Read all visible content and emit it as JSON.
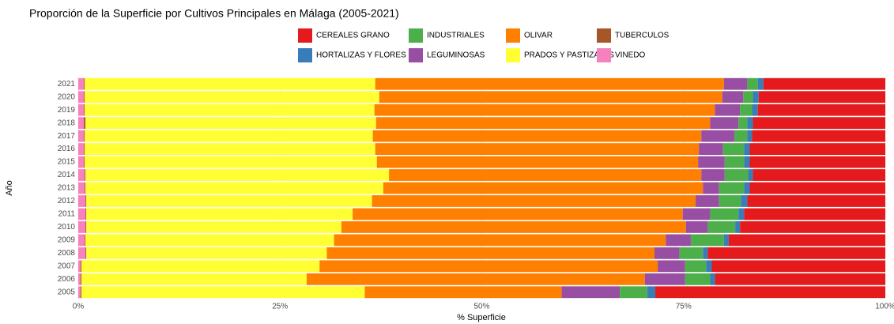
{
  "chart_data": {
    "type": "stacked_barh",
    "title": "Proporción de la Superficie por Cultivos Principales en Málaga (2005-2021)",
    "xlabel": "% Superficie",
    "ylabel": "Año",
    "categories": [
      "2005",
      "2006",
      "2007",
      "2008",
      "2009",
      "2010",
      "2011",
      "2012",
      "2013",
      "2014",
      "2015",
      "2016",
      "2017",
      "2018",
      "2019",
      "2020",
      "2021"
    ],
    "series": [
      {
        "name": "CEREALES GRANO",
        "color": "#e41a1c",
        "values": [
          28.5,
          21.1,
          21.5,
          22.0,
          19.4,
          18.0,
          17.5,
          17.1,
          16.8,
          16.4,
          16.8,
          16.8,
          16.5,
          16.4,
          15.8,
          15.7,
          15.1
        ]
      },
      {
        "name": "HORTALIZAS Y FLORES",
        "color": "#377eb8",
        "values": [
          1.0,
          0.6,
          0.7,
          0.6,
          0.6,
          0.6,
          0.7,
          0.8,
          0.7,
          0.6,
          0.7,
          0.7,
          0.6,
          0.7,
          0.7,
          0.7,
          0.7
        ]
      },
      {
        "name": "INDUSTRIALES",
        "color": "#4daf4a",
        "values": [
          3.4,
          3.1,
          2.6,
          2.9,
          4.1,
          3.4,
          3.5,
          2.7,
          3.1,
          2.9,
          2.4,
          2.6,
          1.6,
          1.1,
          1.5,
          1.2,
          1.3
        ]
      },
      {
        "name": "LEGUMINOSAS",
        "color": "#984ea3",
        "values": [
          7.2,
          5.0,
          3.4,
          3.1,
          3.1,
          2.7,
          3.4,
          2.9,
          2.0,
          2.9,
          3.3,
          3.0,
          4.1,
          3.5,
          3.1,
          2.6,
          2.9
        ]
      },
      {
        "name": "OLIVAR",
        "color": "#ff7f00",
        "values": [
          24.4,
          41.9,
          41.9,
          40.6,
          41.1,
          42.7,
          40.9,
          40.1,
          39.6,
          38.7,
          39.8,
          40.1,
          40.7,
          41.4,
          42.2,
          42.5,
          43.2
        ]
      },
      {
        "name": "PRADOS Y PASTIZALES",
        "color": "#ffff33",
        "values": [
          35.1,
          27.9,
          29.5,
          29.8,
          30.8,
          31.6,
          33.0,
          35.4,
          36.9,
          37.6,
          36.2,
          36.0,
          35.7,
          36.0,
          35.9,
          36.5,
          36.0
        ]
      },
      {
        "name": "TUBERCULOS",
        "color": "#a65628",
        "values": [
          0.1,
          0.1,
          0.1,
          0.1,
          0.1,
          0.1,
          0.1,
          0.1,
          0.1,
          0.1,
          0.1,
          0.1,
          0.1,
          0.2,
          0.1,
          0.1,
          0.1
        ]
      },
      {
        "name": "VINEDO",
        "color": "#f781bf",
        "values": [
          0.3,
          0.3,
          0.3,
          0.9,
          0.8,
          0.9,
          0.9,
          0.9,
          0.8,
          0.8,
          0.7,
          0.7,
          0.7,
          0.7,
          0.7,
          0.7,
          0.7
        ]
      }
    ],
    "xlim": [
      0,
      100
    ],
    "xticks": [
      {
        "value": 0,
        "label": "0%"
      },
      {
        "value": 25,
        "label": "25%"
      },
      {
        "value": 50,
        "label": "50%"
      },
      {
        "value": 75,
        "label": "75%"
      },
      {
        "value": 100,
        "label": "100%"
      }
    ],
    "grid": true
  }
}
